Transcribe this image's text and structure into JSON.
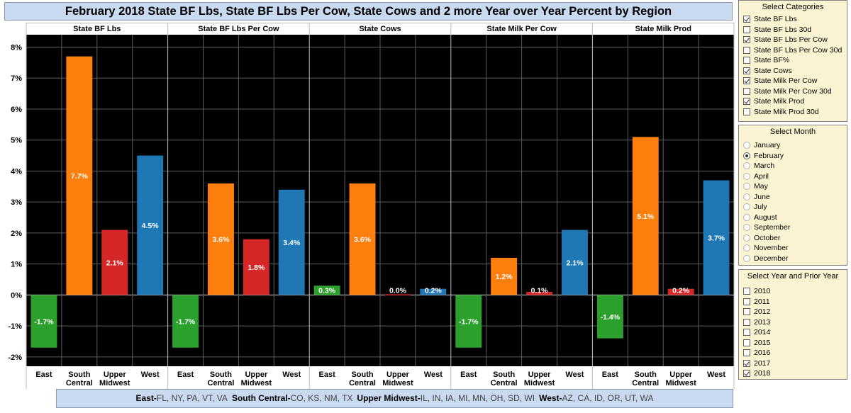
{
  "title": "February 2018 State BF Lbs, State BF Lbs Per Cow, State Cows and 2 more Year over Year Percent by Region",
  "chart_data": {
    "type": "bar",
    "ylim": [
      -2.3,
      8.4
    ],
    "yticks": [
      -2,
      -1,
      0,
      1,
      2,
      3,
      4,
      5,
      6,
      7,
      8
    ],
    "ytick_labels": [
      "-2%",
      "-1%",
      "0%",
      "1%",
      "2%",
      "3%",
      "4%",
      "5%",
      "6%",
      "7%",
      "8%"
    ],
    "categories": [
      "East",
      "South Central",
      "Upper Midwest",
      "West"
    ],
    "category_lines": [
      [
        "East"
      ],
      [
        "South",
        "Central"
      ],
      [
        "Upper",
        "Midwest"
      ],
      [
        "West"
      ]
    ],
    "colors": {
      "East": "#2ca02c",
      "South Central": "#ff7f0e",
      "Upper Midwest": "#d62728",
      "West": "#1f77b4"
    },
    "grid": true,
    "panels": [
      {
        "name": "State BF Lbs",
        "values": [
          -1.7,
          7.7,
          2.1,
          4.5
        ],
        "labels": [
          "-1.7%",
          "7.7%",
          "2.1%",
          "4.5%"
        ]
      },
      {
        "name": "State BF Lbs Per Cow",
        "values": [
          -1.7,
          3.6,
          1.8,
          3.4
        ],
        "labels": [
          "-1.7%",
          "3.6%",
          "1.8%",
          "3.4%"
        ]
      },
      {
        "name": "State Cows",
        "values": [
          0.3,
          3.6,
          0.0,
          0.2
        ],
        "labels": [
          "0.3%",
          "3.6%",
          "0.0%",
          "0.2%"
        ]
      },
      {
        "name": "State Milk Per Cow",
        "values": [
          -1.7,
          1.2,
          0.1,
          2.1
        ],
        "labels": [
          "-1.7%",
          "1.2%",
          "0.1%",
          "2.1%"
        ]
      },
      {
        "name": "State Milk Prod",
        "values": [
          -1.4,
          5.1,
          0.2,
          3.7
        ],
        "labels": [
          "-1.4%",
          "5.1%",
          "0.2%",
          "3.7%"
        ]
      }
    ]
  },
  "legend_footer": [
    {
      "region": "East",
      "states": "FL, NY, PA, VT, VA"
    },
    {
      "region": "South Central",
      "states": "CO, KS, NM, TX"
    },
    {
      "region": "Upper Midwest",
      "states": "IL, IN, IA, MI, MN, OH, SD, WI"
    },
    {
      "region": "West",
      "states": "AZ, CA, ID, OR, UT, WA"
    }
  ],
  "categories_panel": {
    "title": "Select Categories",
    "items": [
      {
        "label": "State BF Lbs",
        "checked": true
      },
      {
        "label": "State BF Lbs 30d",
        "checked": false
      },
      {
        "label": "State BF Lbs Per Cow",
        "checked": true
      },
      {
        "label": "State BF Lbs Per Cow 30d",
        "checked": false
      },
      {
        "label": "State BF%",
        "checked": false
      },
      {
        "label": "State Cows",
        "checked": true
      },
      {
        "label": "State Milk Per Cow",
        "checked": true
      },
      {
        "label": "State Milk Per Cow 30d",
        "checked": false
      },
      {
        "label": "State Milk Prod",
        "checked": true
      },
      {
        "label": "State Milk Prod 30d",
        "checked": false
      }
    ]
  },
  "month_panel": {
    "title": "Select Month",
    "selected": "February",
    "items": [
      "January",
      "February",
      "March",
      "April",
      "May",
      "June",
      "July",
      "August",
      "September",
      "October",
      "November",
      "December"
    ]
  },
  "year_panel": {
    "title": "Select Year and Prior Year",
    "items": [
      {
        "label": "2010",
        "checked": false
      },
      {
        "label": "2011",
        "checked": false
      },
      {
        "label": "2012",
        "checked": false
      },
      {
        "label": "2013",
        "checked": false
      },
      {
        "label": "2014",
        "checked": false
      },
      {
        "label": "2015",
        "checked": false
      },
      {
        "label": "2016",
        "checked": false
      },
      {
        "label": "2017",
        "checked": true
      },
      {
        "label": "2018",
        "checked": true
      }
    ]
  }
}
